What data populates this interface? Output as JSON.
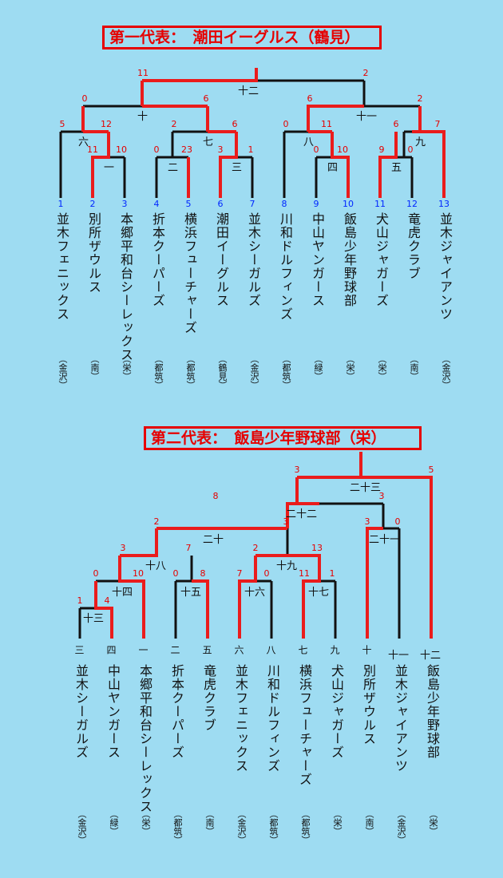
{
  "bracket1": {
    "title": "第一代表：　潮田イーグルス（鶴見）",
    "seeds": [
      "1",
      "2",
      "3",
      "4",
      "5",
      "6",
      "7",
      "8",
      "9",
      "10",
      "11",
      "12",
      "13"
    ],
    "teams": [
      "並木フェニックス",
      "別所ザウルス",
      "本郷平和台シーレックス",
      "折本クーパーズ",
      "横浜フューチャーズ",
      "潮田イーグルス",
      "並木シーガルズ",
      "川和ドルフィンズ",
      "中山ヤンガース",
      "飯島少年野球部",
      "犬山ジャガーズ",
      "竜虎クラブ",
      "並木ジャイアンツ"
    ],
    "regions": [
      "（金沢）",
      "（南）",
      "（栄）",
      "（都筑）",
      "（都筑）",
      "（鶴見）",
      "（金沢）",
      "（都筑）",
      "（緑）",
      "（栄）",
      "（栄）",
      "（南）",
      "（金沢）"
    ],
    "match_nums": [
      "一",
      "二",
      "三",
      "四",
      "五",
      "六",
      "七",
      "八",
      "九",
      "十",
      "十一",
      "十二"
    ],
    "scores": [
      "11",
      "10",
      "0",
      "23",
      "3",
      "1",
      "0",
      "10",
      "9",
      "0",
      "5",
      "12",
      "2",
      "6",
      "0",
      "11",
      "6",
      "7",
      "0",
      "6",
      "6",
      "2",
      "11",
      "2"
    ]
  },
  "bracket2": {
    "title": "第二代表：　飯島少年野球部（栄）",
    "order": [
      "三",
      "四",
      "一",
      "二",
      "五",
      "六",
      "八",
      "七",
      "九",
      "十",
      "十一",
      "十二"
    ],
    "teams": [
      "並木シーガルズ",
      "中山ヤンガース",
      "本郷平和台シーレックス",
      "折本クーパーズ",
      "竜虎クラブ",
      "並木フェニックス",
      "川和ドルフィンズ",
      "横浜フューチャーズ",
      "犬山ジャガーズ",
      "別所ザウルス",
      "並木ジャイアンツ",
      "飯島少年野球部"
    ],
    "regions": [
      "（金沢）",
      "（緑）",
      "（栄）",
      "（都筑）",
      "（南）",
      "（金沢）",
      "（都筑）",
      "（都筑）",
      "（栄）",
      "（南）",
      "（金沢）",
      "（栄）"
    ],
    "match_nums": [
      "十三",
      "十四",
      "十五",
      "十六",
      "十七",
      "十八",
      "十九",
      "二十",
      "二十一",
      "二十二",
      "二十三"
    ],
    "scores": [
      "1",
      "4",
      "0",
      "10",
      "0",
      "8",
      "7",
      "0",
      "11",
      "1",
      "3",
      "7",
      "2",
      "13",
      "2",
      "3",
      "3",
      "0",
      "8",
      "3",
      "3",
      "5"
    ]
  }
}
